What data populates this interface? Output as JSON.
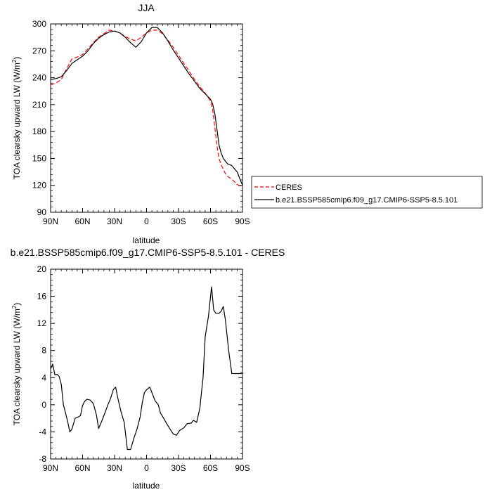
{
  "chart_data": [
    {
      "type": "line",
      "title": "JJA",
      "xlabel": "latitude",
      "ylabel": "TOA clearsky upward LW (W/m",
      "ylabel_sup": "2",
      "ylabel_tail": ")",
      "xlim": [
        90,
        -90
      ],
      "ylim": [
        90,
        300
      ],
      "x_ticks": [
        90,
        60,
        30,
        0,
        -30,
        -60,
        -90
      ],
      "x_tick_labels": [
        "90N",
        "60N",
        "30N",
        "0",
        "30S",
        "60S",
        "90S"
      ],
      "y_ticks": [
        90,
        120,
        150,
        180,
        210,
        240,
        270,
        300
      ],
      "y_tick_labels": [
        "90",
        "120",
        "150",
        "180",
        "210",
        "240",
        "270",
        "300"
      ],
      "grid": false,
      "legend_position": "right",
      "series": [
        {
          "name": "CERES",
          "color": "#ff0000",
          "dash": true,
          "x": [
            90,
            85,
            80,
            75,
            70,
            65,
            60,
            55,
            50,
            45,
            40,
            35,
            30,
            25,
            20,
            15,
            10,
            5,
            0,
            -5,
            -10,
            -15,
            -20,
            -25,
            -30,
            -35,
            -40,
            -45,
            -50,
            -55,
            -60,
            -62,
            -64,
            -66,
            -68,
            -70,
            -72,
            -74,
            -76,
            -80,
            -85,
            -90
          ],
          "y": [
            232,
            234,
            238,
            250,
            261,
            263,
            266,
            272,
            279,
            285,
            289,
            293,
            292,
            290,
            286,
            283,
            281,
            285,
            290,
            293,
            293,
            289,
            282,
            274,
            265,
            256,
            247,
            238,
            230,
            223,
            214,
            205,
            185,
            165,
            150,
            143,
            138,
            133,
            130,
            127,
            121,
            118
          ]
        },
        {
          "name": "b.e21.BSSP585cmip6.f09_g17.CMIP6-SSP5-8.5.101",
          "color": "#000000",
          "dash": false,
          "x": [
            90,
            85,
            80,
            75,
            70,
            65,
            60,
            55,
            50,
            45,
            40,
            35,
            30,
            25,
            20,
            15,
            10,
            5,
            0,
            -5,
            -10,
            -15,
            -20,
            -25,
            -30,
            -35,
            -40,
            -45,
            -50,
            -55,
            -60,
            -62,
            -64,
            -66,
            -68,
            -70,
            -72,
            -74,
            -76,
            -80,
            -85,
            -90
          ],
          "y": [
            238,
            239,
            241,
            248,
            256,
            260,
            264,
            270,
            278,
            284,
            288,
            291,
            292,
            290,
            285,
            279,
            274,
            280,
            290,
            296,
            296,
            290,
            281,
            271,
            262,
            253,
            244,
            236,
            228,
            222,
            216,
            211,
            200,
            183,
            165,
            156,
            150,
            147,
            144,
            142,
            135,
            120
          ]
        }
      ]
    },
    {
      "type": "line",
      "title": "b.e21.BSSP585cmip6.f09_g17.CMIP6-SSP5-8.5.101 - CERES",
      "xlabel": "latitude",
      "ylabel": "TOA clearsky upward LW (W/m",
      "ylabel_sup": "2",
      "ylabel_tail": ")",
      "xlim": [
        90,
        -90
      ],
      "ylim": [
        -8,
        20
      ],
      "x_ticks": [
        90,
        60,
        30,
        0,
        -30,
        -60,
        -90
      ],
      "x_tick_labels": [
        "90N",
        "60N",
        "30N",
        "0",
        "30S",
        "60S",
        "90S"
      ],
      "y_ticks": [
        -8,
        -4,
        0,
        4,
        8,
        12,
        16,
        20
      ],
      "y_tick_labels": [
        "-8",
        "-4",
        "0",
        "4",
        "8",
        "12",
        "16",
        "20"
      ],
      "grid": false,
      "series": [
        {
          "name": "",
          "color": "#000000",
          "dash": false,
          "x": [
            90,
            88,
            86,
            84,
            82,
            80,
            78,
            76,
            74,
            72,
            70,
            67,
            64,
            62,
            60,
            58,
            56,
            53,
            50,
            47,
            45,
            42,
            39,
            36,
            34,
            31,
            29,
            27,
            24,
            21,
            18,
            15,
            12,
            9,
            6,
            4,
            2,
            0,
            -3,
            -5,
            -8,
            -11,
            -13,
            -16,
            -19,
            -22,
            -25,
            -28,
            -31,
            -35,
            -38,
            -42,
            -44,
            -47,
            -50,
            -53,
            -55,
            -58,
            -61,
            -63,
            -65,
            -68,
            -70,
            -72,
            -74,
            -77,
            -80,
            -82,
            -84,
            -86,
            -88,
            -90
          ],
          "y": [
            5.3,
            6,
            4.4,
            4.5,
            4.2,
            3,
            0,
            -1.2,
            -2.5,
            -4,
            -3.6,
            -2,
            -1.8,
            -1.6,
            -0.1,
            0.5,
            0.8,
            0.7,
            0.2,
            -1.5,
            -3.5,
            -2.4,
            -1.2,
            0.1,
            0.8,
            2.3,
            2.6,
            1,
            -1,
            -2.6,
            -6.6,
            -6.6,
            -5,
            -3.6,
            -1.8,
            0.3,
            1.8,
            2.2,
            2.6,
            1.8,
            0.6,
            0,
            -1.2,
            -2,
            -2.8,
            -3.6,
            -4.3,
            -4.5,
            -3.8,
            -3.4,
            -2.8,
            -2.7,
            -2.3,
            -2.6,
            -0.5,
            4,
            10,
            13,
            17.4,
            14,
            13.5,
            13.5,
            13.8,
            14.5,
            12.5,
            8,
            4.6,
            4.6,
            4.6,
            4.6,
            4.6,
            4.6
          ]
        }
      ]
    }
  ]
}
